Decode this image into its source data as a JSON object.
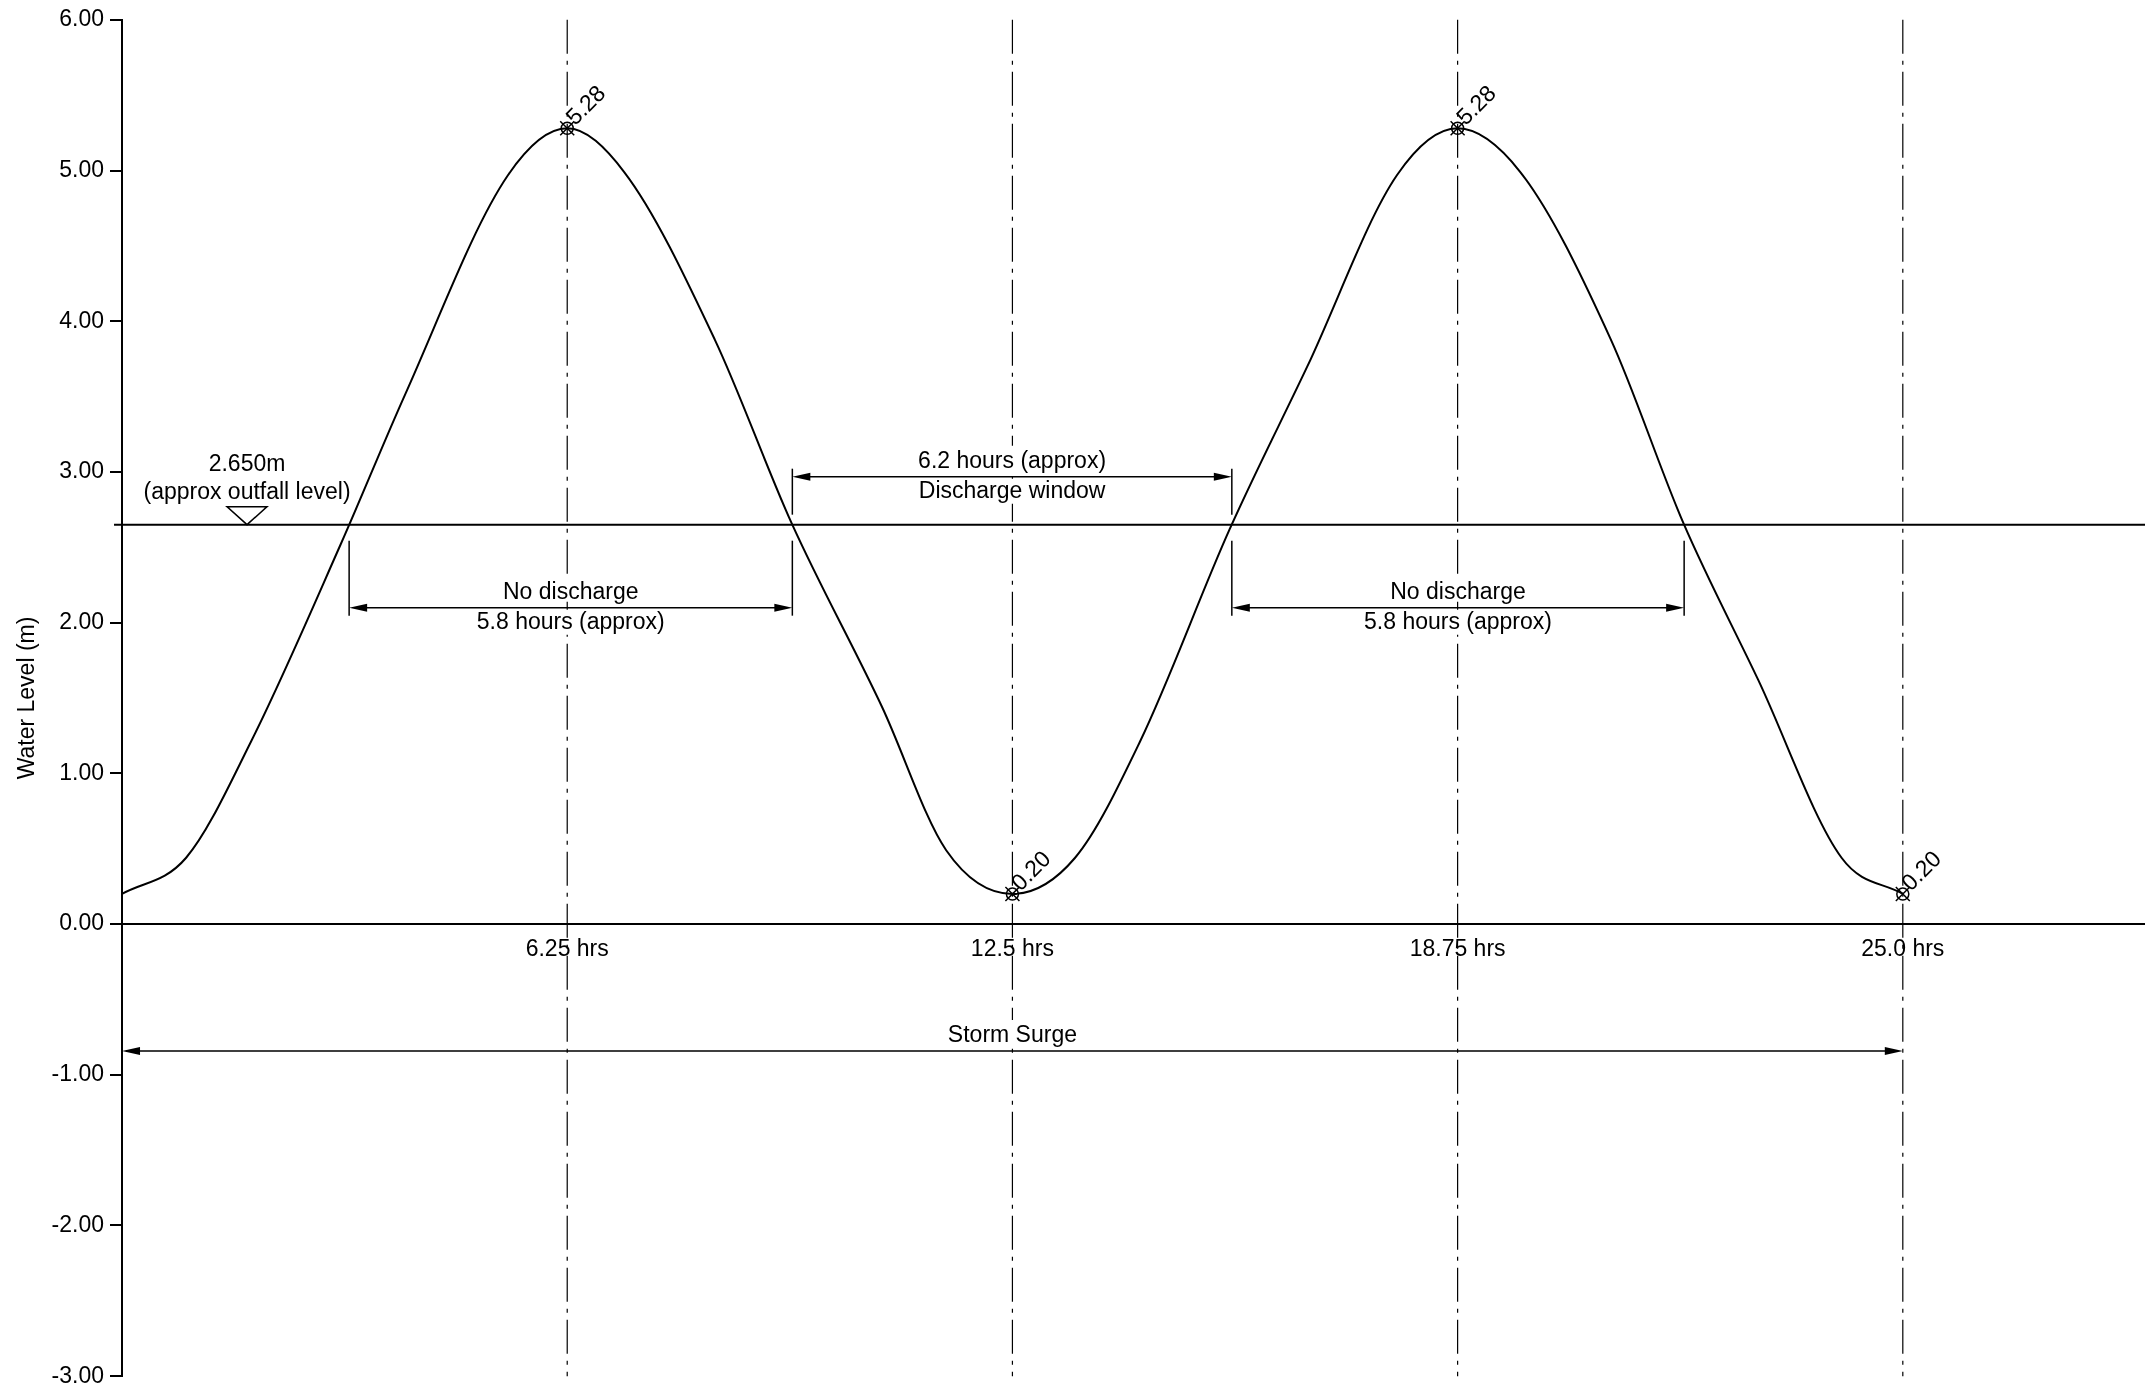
{
  "chart_data": {
    "type": "line",
    "ylabel": "Water Level (m)",
    "x": [
      0,
      0.9,
      1.81,
      3.07,
      3.98,
      5.42,
      6.25,
      7.05,
      8.32,
      9.4,
      10.67,
      11.57,
      12.5,
      13.38,
      14.29,
      15.55,
      16.64,
      17.9,
      18.75,
      19.63,
      20.9,
      21.92,
      22.97,
      24.14,
      25
    ],
    "series": [
      {
        "color": "#000000",
        "values": [
          0.2,
          0.44,
          1.21,
          2.52,
          3.52,
          4.97,
          5.28,
          4.99,
          3.88,
          2.66,
          1.44,
          0.49,
          0.2,
          0.44,
          1.21,
          2.62,
          3.7,
          4.97,
          5.28,
          4.99,
          3.88,
          2.66,
          1.62,
          0.44,
          0.2
        ],
        "value_labels": [
          null,
          null,
          null,
          null,
          null,
          null,
          "5.28",
          null,
          null,
          null,
          null,
          null,
          "0.20",
          null,
          null,
          null,
          null,
          null,
          "5.28",
          null,
          null,
          null,
          null,
          null,
          "0.20"
        ]
      }
    ],
    "xlim": [
      0,
      28.4
    ],
    "xticks": [
      {
        "value": 6.25,
        "label": "6.25 hrs"
      },
      {
        "value": 12.5,
        "label": "12.5 hrs"
      },
      {
        "value": 18.75,
        "label": "18.75 hrs"
      },
      {
        "value": 25,
        "label": "25.0 hrs"
      }
    ],
    "ylim": [
      -3,
      6
    ],
    "yticks": [
      {
        "value": -3,
        "label": "-3.00"
      },
      {
        "value": -2,
        "label": "-2.00"
      },
      {
        "value": -1,
        "label": "-1.00"
      },
      {
        "value": 0,
        "label": "0.00"
      },
      {
        "value": 1,
        "label": "1.00"
      },
      {
        "value": 2,
        "label": "2.00"
      },
      {
        "value": 3,
        "label": "3.00"
      },
      {
        "value": 4,
        "label": "4.00"
      },
      {
        "value": 5,
        "label": "5.00"
      },
      {
        "value": 6,
        "label": "6.00"
      }
    ],
    "grid": "x",
    "legend": false,
    "line_style": "solid",
    "ref_lines": [
      {
        "axis": "y",
        "value": 2.65,
        "label": "2.650m\n(approx outfall level)"
      }
    ],
    "annotations": [
      "No discharge\n5.8 hours (approx)",
      "6.2 hours (approx)\nDischarge window",
      "No discharge\n5.8 hours (approx)",
      "Storm Surge"
    ]
  }
}
